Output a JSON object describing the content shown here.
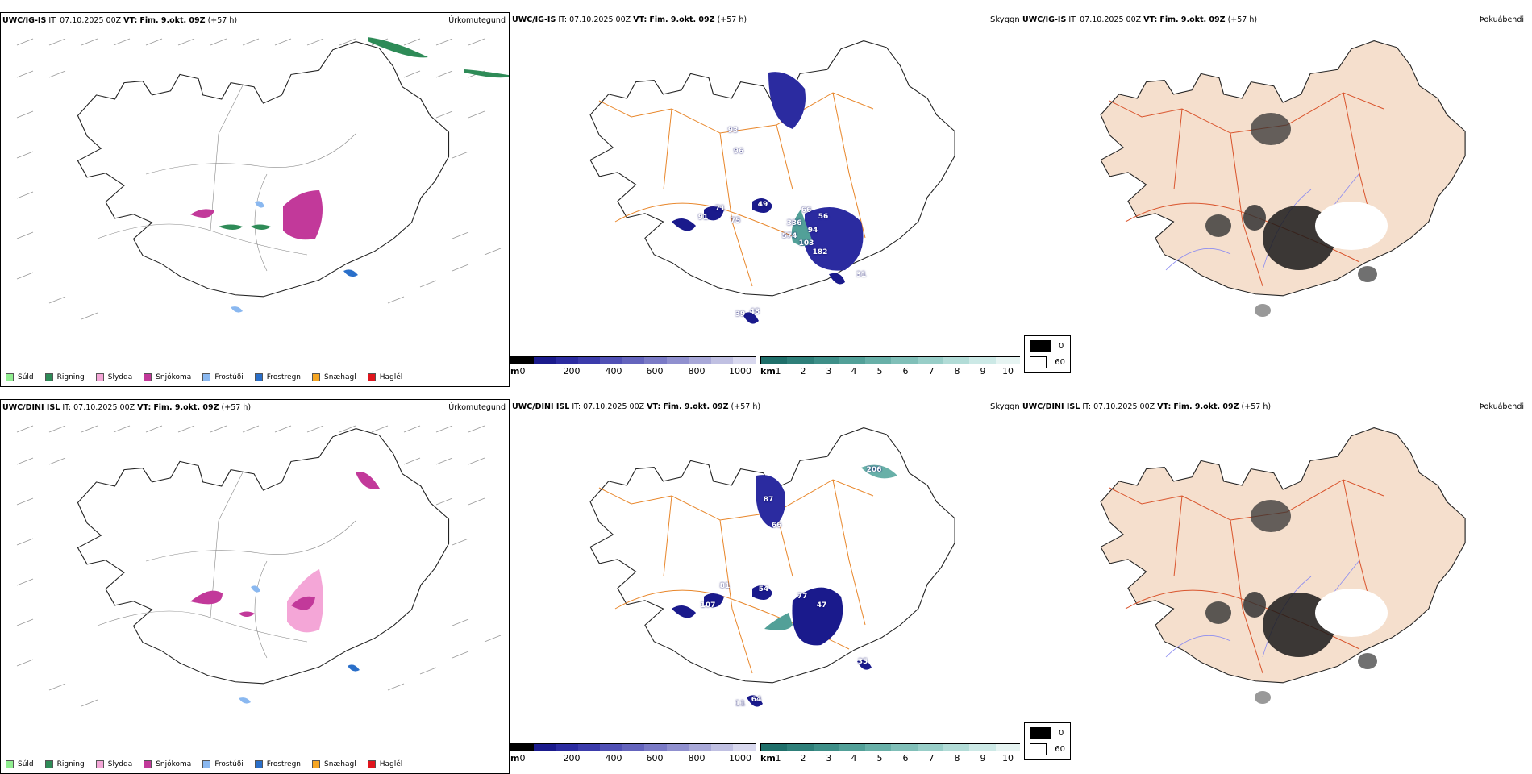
{
  "rows": [
    {
      "model": "UWC/IG-IS",
      "it_label": "IT:",
      "it_value": "07.10.2025 00Z",
      "vt_label": "VT:",
      "vt_value": "Fim. 9.okt. 09Z",
      "lead": "(+57 h)",
      "precip_title": "Úrkomutegund",
      "cloud_title": "Skyggni",
      "fog_title": "Þokuábendi",
      "cloud_labels": [
        "93",
        "96",
        "71",
        "49",
        "91",
        "75",
        "66",
        "56",
        "336",
        "94",
        "574",
        "103",
        "182",
        "31",
        "48",
        "39"
      ]
    },
    {
      "model": "UWC/DINI ISL",
      "it_label": "IT:",
      "it_value": "07.10.2025 00Z",
      "vt_label": "VT:",
      "vt_value": "Fim. 9.okt. 09Z",
      "lead": "(+57 h)",
      "precip_title": "Úrkomutegund",
      "cloud_title": "Skyggni",
      "fog_title": "Þokuábendi",
      "cloud_labels": [
        "206",
        "87",
        "66",
        "81",
        "54",
        "77",
        "47",
        "107",
        "35",
        "64",
        "11"
      ]
    }
  ],
  "precip_legend": [
    {
      "label": "Súld",
      "color": "#90ee90"
    },
    {
      "label": "Rigning",
      "color": "#2e8b57"
    },
    {
      "label": "Slydda",
      "color": "#f4a6d7"
    },
    {
      "label": "Snjókoma",
      "color": "#c2399a"
    },
    {
      "label": "Frostúði",
      "color": "#8ab8f0"
    },
    {
      "label": "Frostregn",
      "color": "#2a6fc9"
    },
    {
      "label": "Snæhagl",
      "color": "#f5a623"
    },
    {
      "label": "Haglél",
      "color": "#e0151d"
    }
  ],
  "ceiling_bar": {
    "unit": "m",
    "ticks": [
      "0",
      "200",
      "400",
      "600",
      "800",
      "1000"
    ],
    "colors": [
      "#000000",
      "#1a1a8c",
      "#2b2ba0",
      "#3b3bab",
      "#5050b5",
      "#6464bd",
      "#7a7ac6",
      "#9090cf",
      "#a8a8d8",
      "#c0c0e2",
      "#d8d8ee"
    ]
  },
  "visibility_bar": {
    "unit": "km",
    "ticks": [
      "1",
      "2",
      "3",
      "4",
      "5",
      "6",
      "7",
      "8",
      "9",
      "10"
    ],
    "colors": [
      "#1f6f6a",
      "#2e7f79",
      "#3e8f88",
      "#52a098",
      "#68b0a8",
      "#80bfb8",
      "#98cec8",
      "#b2dcd7",
      "#cce9e6",
      "#e6f4f2"
    ]
  },
  "fog_legend": [
    {
      "value": "0",
      "color": "#000000"
    },
    {
      "value": "60",
      "color": "#ffffff"
    }
  ]
}
